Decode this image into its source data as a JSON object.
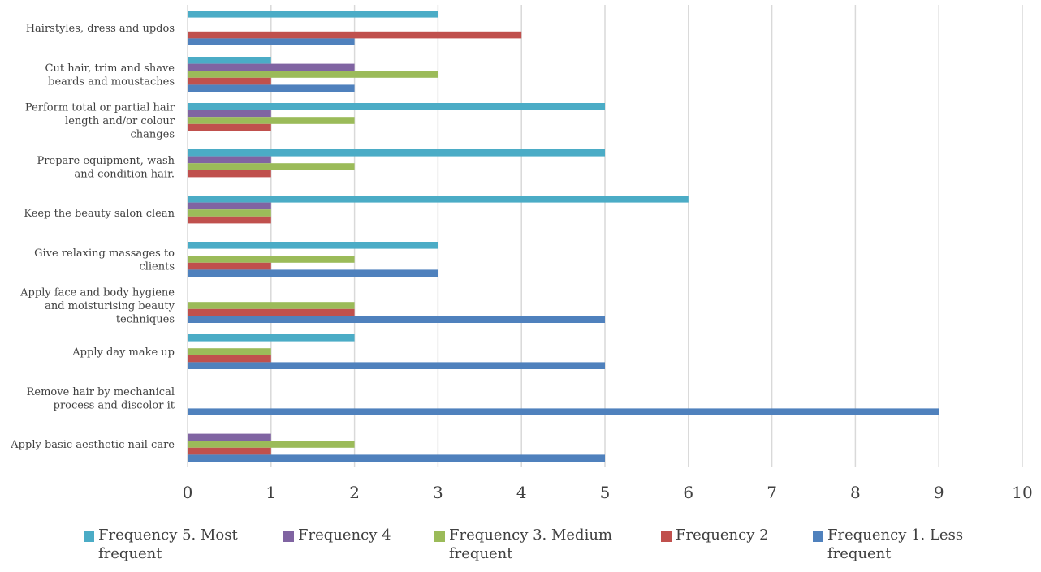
{
  "chart_data": {
    "type": "bar",
    "orientation": "horizontal",
    "title": "",
    "xlabel": "",
    "ylabel": "",
    "xlim": [
      0,
      10
    ],
    "xticks": [
      "0",
      "1",
      "2",
      "3",
      "4",
      "5",
      "6",
      "7",
      "8",
      "9",
      "10"
    ],
    "grid": "vertical",
    "legend_position": "bottom",
    "categories": [
      "Hairstyles, dress and updos",
      "Cut hair, trim and shave beards and moustaches",
      "Perform total or partial hair length and/or colour changes",
      "Prepare equipment, wash and condition hair.",
      "Keep the beauty salon clean",
      "Give relaxing massages to clients",
      "Apply face and body hygiene and moisturising beauty techniques",
      "Apply day make up",
      "Remove hair by mechanical process and discolor it",
      "Apply basic aesthetic nail care"
    ],
    "category_lines": [
      [
        "Hairstyles, dress and updos"
      ],
      [
        "Cut hair, trim and shave",
        "beards and moustaches"
      ],
      [
        "Perform total or partial hair",
        "length and/or colour",
        "changes"
      ],
      [
        "Prepare equipment, wash",
        "and condition hair."
      ],
      [
        "Keep the beauty salon clean"
      ],
      [
        "Give relaxing massages to",
        "clients"
      ],
      [
        "Apply face and body hygiene",
        "and moisturising beauty",
        "techniques"
      ],
      [
        "Apply day make up"
      ],
      [
        "Remove hair by mechanical",
        "process and discolor it"
      ],
      [
        "Apply basic aesthetic nail care"
      ]
    ],
    "series": [
      {
        "name": "Frequency 5. Most frequent",
        "color": "#4BACC6",
        "values": [
          3,
          1,
          5,
          5,
          6,
          3,
          0,
          2,
          0,
          0
        ]
      },
      {
        "name": "Frequency 4",
        "color": "#8064A2",
        "values": [
          0,
          2,
          1,
          1,
          1,
          0,
          0,
          0,
          0,
          1
        ]
      },
      {
        "name": "Frequency 3. Medium frequent",
        "color": "#9BBB59",
        "values": [
          0,
          3,
          2,
          2,
          1,
          2,
          2,
          1,
          0,
          2
        ]
      },
      {
        "name": "Frequency 2",
        "color": "#C0504D",
        "values": [
          4,
          1,
          1,
          1,
          1,
          1,
          2,
          1,
          0,
          1
        ]
      },
      {
        "name": "Frequency 1. Less frequent",
        "color": "#4F81BD",
        "values": [
          2,
          2,
          0,
          0,
          0,
          3,
          5,
          5,
          9,
          5
        ]
      }
    ],
    "legend": [
      {
        "lines": [
          "Frequency 5. Most",
          "frequent"
        ],
        "color": "#4BACC6"
      },
      {
        "lines": [
          "Frequency 4"
        ],
        "color": "#8064A2"
      },
      {
        "lines": [
          "Frequency 3. Medium",
          "frequent"
        ],
        "color": "#9BBB59"
      },
      {
        "lines": [
          "Frequency 2"
        ],
        "color": "#C0504D"
      },
      {
        "lines": [
          "Frequency 1. Less",
          "frequent"
        ],
        "color": "#4F81BD"
      }
    ]
  }
}
